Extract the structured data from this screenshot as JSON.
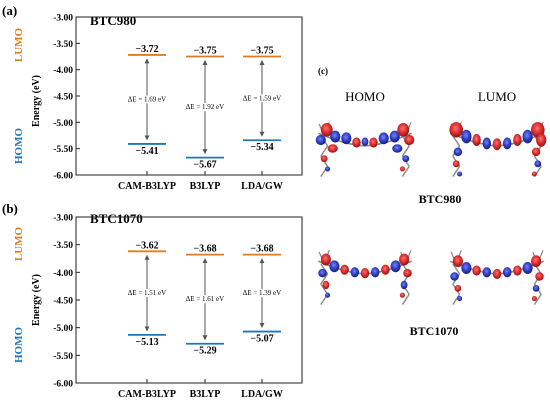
{
  "panel_c_label": "(c)",
  "orbital_headers": [
    "HOMO",
    "LUMO"
  ],
  "molecule_labels": [
    "BTC980",
    "BTC1070"
  ],
  "colors": {
    "lumo": "#E07B1F",
    "homo": "#1F77B4",
    "orbital_positive": "#D42020",
    "orbital_negative": "#2233BB",
    "frame": "#222222"
  },
  "chart_data": [
    {
      "panel": "(a)",
      "title": "BTC980",
      "type": "energy-level",
      "ylabel": "Energy (eV)",
      "ylim": [
        -6.0,
        -3.0
      ],
      "yticks": [
        "-3.00",
        "-3.50",
        "-4.00",
        "-4.50",
        "-5.00",
        "-5.50",
        "-6.00"
      ],
      "side_labels": {
        "lumo": "LUMO",
        "homo": "HOMO"
      },
      "categories": [
        "CAM-B3LYP",
        "B3LYP",
        "LDA/GW"
      ],
      "lumo": [
        -3.72,
        -3.75,
        -3.75
      ],
      "homo": [
        -5.41,
        -5.67,
        -5.34
      ],
      "lumo_labels": [
        "−3.72",
        "−3.75",
        "−3.75"
      ],
      "homo_labels": [
        "−5.41",
        "−5.67",
        "−5.34"
      ],
      "gap_labels": [
        "ΔE = 1.69 eV",
        "ΔE = 1.92 eV",
        "ΔE = 1.59 eV"
      ]
    },
    {
      "panel": "(b)",
      "title": "BTC1070",
      "type": "energy-level",
      "ylabel": "Energy (eV)",
      "ylim": [
        -6.0,
        -3.0
      ],
      "yticks": [
        "-3.00",
        "-3.50",
        "-4.00",
        "-4.50",
        "-5.00",
        "-5.50",
        "-6.00"
      ],
      "side_labels": {
        "lumo": "LUMO",
        "homo": "HOMO"
      },
      "categories": [
        "CAM-B3LYP",
        "B3LYP",
        "LDA/GW"
      ],
      "lumo": [
        -3.62,
        -3.68,
        -3.68
      ],
      "homo": [
        -5.13,
        -5.29,
        -5.07
      ],
      "lumo_labels": [
        "−3.62",
        "−3.68",
        "−3.68"
      ],
      "homo_labels": [
        "−5.13",
        "−5.29",
        "−5.07"
      ],
      "gap_labels": [
        "ΔE = 1.51 eV",
        "ΔE = 1.61 eV",
        "ΔE = 1.39 eV"
      ]
    }
  ]
}
